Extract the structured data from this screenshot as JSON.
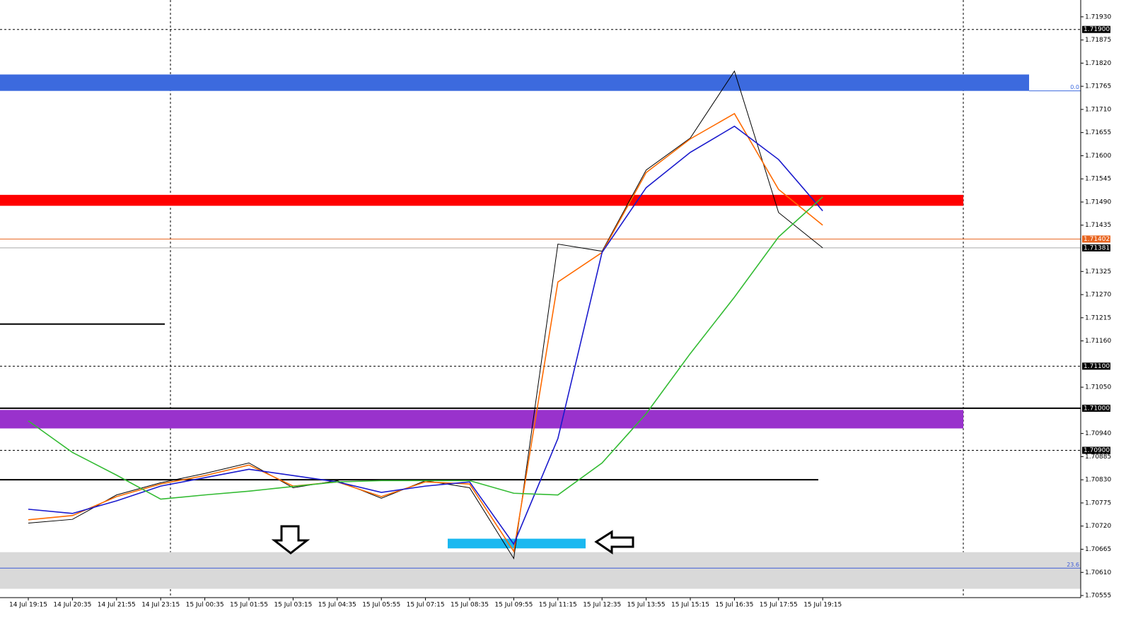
{
  "chart_data": {
    "type": "line",
    "categories": [
      "14 Jul 19:15",
      "14 Jul 20:35",
      "14 Jul 21:55",
      "14 Jul 23:15",
      "15 Jul 00:35",
      "15 Jul 01:55",
      "15 Jul 03:15",
      "15 Jul 04:35",
      "15 Jul 05:55",
      "15 Jul 07:15",
      "15 Jul 08:35",
      "15 Jul 09:55",
      "15 Jul 11:15",
      "15 Jul 12:35",
      "15 Jul 13:55",
      "15 Jul 15:15",
      "15 Jul 16:35",
      "15 Jul 17:55",
      "15 Jul 19:15"
    ],
    "series": [
      {
        "color": "#000000",
        "values": [
          1.70727,
          1.70736,
          1.70794,
          1.70823,
          1.70845,
          1.7087,
          1.70811,
          1.70828,
          1.70786,
          1.70828,
          1.70811,
          1.70643,
          1.7139,
          1.71373,
          1.71566,
          1.71642,
          1.71801,
          1.71465,
          1.71381
        ]
      },
      {
        "color": "#ff6a00",
        "values": [
          1.70735,
          1.70745,
          1.7079,
          1.7082,
          1.7084,
          1.70865,
          1.70815,
          1.70825,
          1.7079,
          1.70825,
          1.7082,
          1.7066,
          1.713,
          1.7137,
          1.7156,
          1.7164,
          1.717,
          1.7152,
          1.71435
        ]
      },
      {
        "color": "#1a1acd",
        "values": [
          1.7076,
          1.7075,
          1.7078,
          1.70815,
          1.70835,
          1.70855,
          1.7084,
          1.70825,
          1.708,
          1.70815,
          1.70825,
          1.70677,
          1.70928,
          1.7137,
          1.71524,
          1.71608,
          1.7167,
          1.71591,
          1.71469
        ]
      },
      {
        "color": "#33bb33",
        "values": [
          1.7097,
          1.70895,
          1.70841,
          1.70784,
          1.70794,
          1.70803,
          1.70814,
          1.70825,
          1.70828,
          1.70828,
          1.70828,
          1.70798,
          1.70794,
          1.7087,
          1.70987,
          1.7113,
          1.71264,
          1.71407,
          1.71502
        ]
      }
    ],
    "ylim": [
      1.7055,
      1.7197
    ],
    "yticks": [
      {
        "value": 1.7193,
        "label": "1.71930"
      },
      {
        "value": 1.71875,
        "label": "1.71875"
      },
      {
        "value": 1.7182,
        "label": "1.71820"
      },
      {
        "value": 1.71765,
        "label": "1.71765"
      },
      {
        "value": 1.7171,
        "label": "1.71710"
      },
      {
        "value": 1.71655,
        "label": "1.71655"
      },
      {
        "value": 1.716,
        "label": "1.71600"
      },
      {
        "value": 1.71545,
        "label": "1.71545"
      },
      {
        "value": 1.7149,
        "label": "1.71490"
      },
      {
        "value": 1.71435,
        "label": "1.71435"
      },
      {
        "value": 1.71325,
        "label": "1.71325"
      },
      {
        "value": 1.7127,
        "label": "1.71270"
      },
      {
        "value": 1.71215,
        "label": "1.71215"
      },
      {
        "value": 1.7116,
        "label": "1.71160"
      },
      {
        "value": 1.7105,
        "label": "1.71050"
      },
      {
        "value": 1.7094,
        "label": "1.70940"
      },
      {
        "value": 1.70885,
        "label": "1.70885"
      },
      {
        "value": 1.7083,
        "label": "1.70830"
      },
      {
        "value": 1.70775,
        "label": "1.70775"
      },
      {
        "value": 1.7072,
        "label": "1.70720"
      },
      {
        "value": 1.70665,
        "label": "1.70665"
      },
      {
        "value": 1.7061,
        "label": "1.70610"
      },
      {
        "value": 1.70555,
        "label": "1.70555"
      }
    ],
    "price_labels": [
      {
        "value": 1.719,
        "label": "1.71900",
        "color": "#000000"
      },
      {
        "value": 1.71402,
        "label": "1.71402",
        "color": "#e8641e"
      },
      {
        "value": 1.71381,
        "label": "1.71381",
        "color": "#000000"
      },
      {
        "value": 1.711,
        "label": "1.71100",
        "color": "#000000"
      },
      {
        "value": 1.71,
        "label": "1.71000",
        "color": "#000000"
      },
      {
        "value": 1.709,
        "label": "1.70900",
        "color": "#000000"
      }
    ],
    "zones": [
      {
        "from": 1.71754,
        "to": 1.71793,
        "color": "#3c6ade",
        "label": "0.0"
      },
      {
        "from": 1.71481,
        "to": 1.71507,
        "color": "#ff0000"
      },
      {
        "from": 1.70952,
        "to": 1.70996,
        "color": "#9932cc"
      },
      {
        "from": 1.70571,
        "to": 1.70658,
        "color": "#d9d9d9"
      },
      {
        "from": 1.70667,
        "to": 1.7069,
        "color": "#1ab8f0"
      }
    ],
    "levels": [
      {
        "value": 1.719,
        "color": "#000000",
        "style": "dashed"
      },
      {
        "value": 1.711,
        "color": "#000000",
        "style": "dashed"
      },
      {
        "value": 1.709,
        "color": "#000000",
        "style": "dashed"
      },
      {
        "value": 1.71,
        "color": "#000000",
        "style": "solid"
      },
      {
        "value": 1.712,
        "color": "#000000",
        "style": "solid"
      },
      {
        "value": 1.7083,
        "color": "#000000",
        "style": "solid"
      },
      {
        "value": 1.71402,
        "color": "#e8641e",
        "style": "thin"
      },
      {
        "value": 1.71381,
        "color": "#aaaaaa",
        "style": "thin"
      },
      {
        "value": 1.7062,
        "color": "#3c5ad6",
        "style": "thin",
        "label": "23.6"
      }
    ]
  }
}
